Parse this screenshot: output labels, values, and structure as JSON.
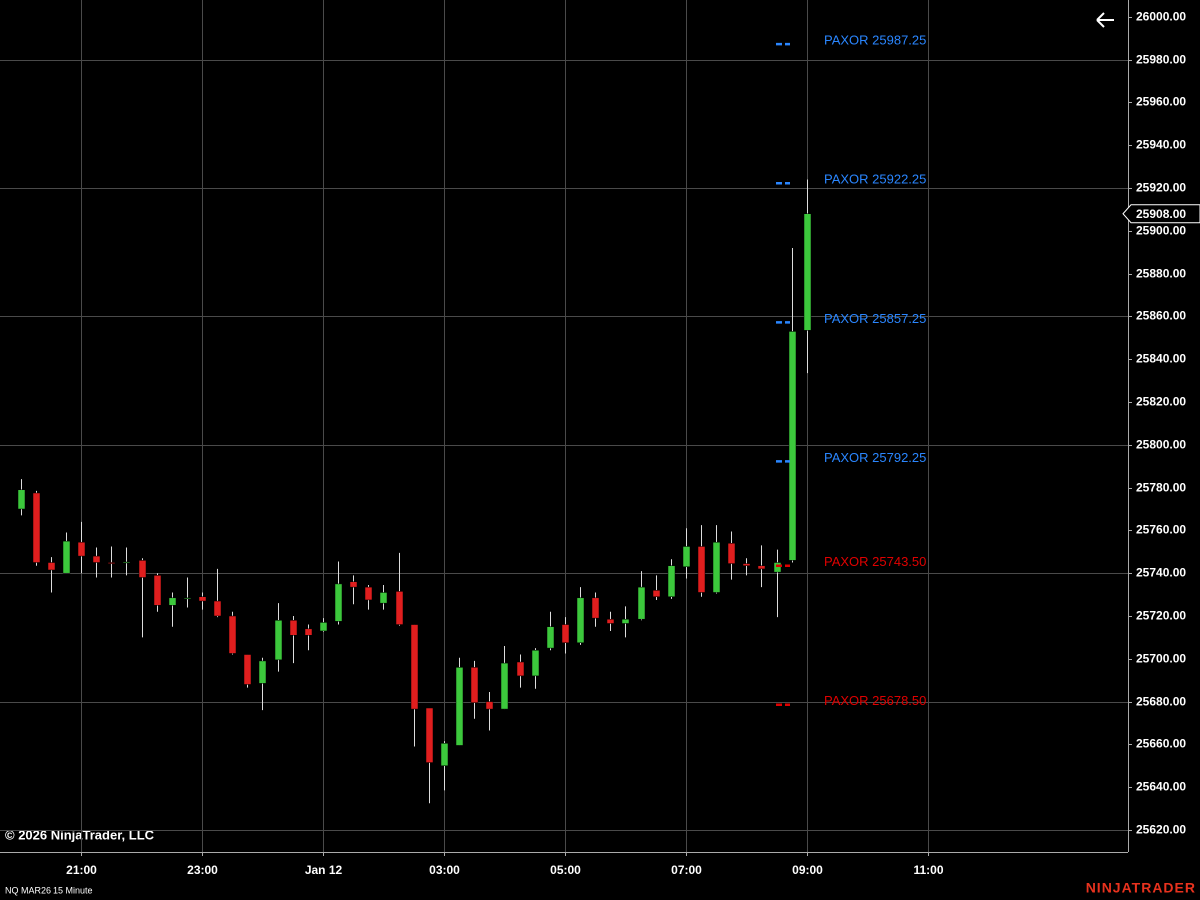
{
  "chart_data": {
    "type": "candlestick",
    "x": [
      20,
      20.25,
      20.5,
      20.75,
      21,
      21.25,
      21.5,
      21.75,
      22,
      22.25,
      22.5,
      22.75,
      23,
      23.25,
      23.5,
      23.75,
      24,
      24.25,
      24.5,
      24.75,
      25,
      25.25,
      25.5,
      25.75,
      26,
      26.25,
      26.5,
      26.75,
      27,
      27.25,
      27.5,
      27.75,
      28,
      28.25,
      28.5,
      28.75,
      29,
      29.25,
      29.5,
      29.75,
      30,
      30.25,
      30.5,
      30.75,
      31,
      31.25,
      31.5,
      31.75,
      32,
      32.25,
      32.5,
      32.75,
      33
    ],
    "open": [
      25770,
      25777.5,
      25745,
      25740,
      25754.5,
      25748,
      25745,
      25745,
      25746,
      25739,
      25725,
      25728.25,
      25729,
      25727,
      25720,
      25702,
      25688.5,
      25699.5,
      25718,
      25714,
      25713,
      25717.5,
      25736,
      25733.5,
      25726,
      25731.5,
      25716,
      25677,
      25650,
      25659.5,
      25696,
      25680,
      25676.5,
      25698.5,
      25692,
      25705,
      25716,
      25707.5,
      25728.5,
      25718.5,
      25716.5,
      25718.5,
      25732,
      25729,
      25743,
      25752.5,
      25731,
      25754,
      25744.5,
      25743.5,
      25740.5,
      25746,
      25853.5
    ],
    "high": [
      25784,
      25778.5,
      25747.5,
      25759,
      25764,
      25752,
      25752.5,
      25752,
      25747,
      25740,
      25731,
      25738,
      25731,
      25742,
      25722,
      25702,
      25700.5,
      25726,
      25720,
      25716,
      25719,
      25745.5,
      25739,
      25734.5,
      25734.5,
      25749.5,
      25716,
      25677,
      25661.5,
      25700.5,
      25699,
      25684.5,
      25706,
      25702,
      25705,
      25722,
      25719.5,
      25733.5,
      25731,
      25722,
      25724.5,
      25741,
      25739,
      25746.5,
      25761,
      25762.5,
      25762.5,
      25759.5,
      25747,
      25753,
      25751,
      25892,
      25924
    ],
    "low": [
      25767,
      25743.5,
      25731,
      25740,
      25740,
      25738,
      25738,
      25739,
      25710,
      25722,
      25715,
      25724,
      25723,
      25719.5,
      25702,
      25686.5,
      25676,
      25694,
      25698,
      25704,
      25712.5,
      25716,
      25725.5,
      25723,
      25723,
      25715.5,
      25659,
      25632.5,
      25638.5,
      25659.5,
      25672,
      25666.5,
      25676.5,
      25686.5,
      25686,
      25704,
      25702.5,
      25706.5,
      25715,
      25713,
      25710,
      25718,
      25727.5,
      25728,
      25737.5,
      25729,
      25730.5,
      25737,
      25739,
      25733.5,
      25719.5,
      25745,
      25833.5
    ],
    "close": [
      25779,
      25745,
      25741.5,
      25755,
      25748,
      25745,
      25744.5,
      25745.25,
      25738,
      25725,
      25728.5,
      25728.5,
      25727,
      25720,
      25702.5,
      25688,
      25699,
      25718,
      25711,
      25711,
      25717,
      25735,
      25733.5,
      25727.5,
      25731,
      25716,
      25676.5,
      25651.5,
      25660.5,
      25696,
      25679.5,
      25676.5,
      25698,
      25692,
      25704,
      25715,
      25707.5,
      25728.5,
      25719,
      25716.5,
      25718.5,
      25733.5,
      25729,
      25743.5,
      25752.5,
      25731,
      25754.5,
      25744.5,
      25743.5,
      25742,
      25745,
      25853,
      25908
    ],
    "up_color": "#3cc83c",
    "down_color": "#e01e1e",
    "xlim": [
      19.66,
      38.31
    ],
    "xticks": [
      {
        "value": 21,
        "label": "21:00"
      },
      {
        "value": 23,
        "label": "23:00"
      },
      {
        "value": 25,
        "label": "Jan 12"
      },
      {
        "value": 27,
        "label": "03:00"
      },
      {
        "value": 29,
        "label": "05:00"
      },
      {
        "value": 31,
        "label": "07:00"
      },
      {
        "value": 33,
        "label": "09:00"
      },
      {
        "value": 35,
        "label": "11:00"
      }
    ],
    "ylim": [
      25609.7,
      26007.9
    ],
    "yticks": [
      {
        "value": 25620,
        "label": "25620.00"
      },
      {
        "value": 25640,
        "label": "25640.00"
      },
      {
        "value": 25660,
        "label": "25660.00"
      },
      {
        "value": 25680,
        "label": "25680.00"
      },
      {
        "value": 25700,
        "label": "25700.00"
      },
      {
        "value": 25720,
        "label": "25720.00"
      },
      {
        "value": 25740,
        "label": "25740.00"
      },
      {
        "value": 25760,
        "label": "25760.00"
      },
      {
        "value": 25780,
        "label": "25780.00"
      },
      {
        "value": 25800,
        "label": "25800.00"
      },
      {
        "value": 25820,
        "label": "25820.00"
      },
      {
        "value": 25840,
        "label": "25840.00"
      },
      {
        "value": 25860,
        "label": "25860.00"
      },
      {
        "value": 25880,
        "label": "25880.00"
      },
      {
        "value": 25900,
        "label": "25900.00"
      },
      {
        "value": 25920,
        "label": "25920.00"
      },
      {
        "value": 25940,
        "label": "25940.00"
      },
      {
        "value": 25960,
        "label": "25960.00"
      },
      {
        "value": 25980,
        "label": "25980.00"
      },
      {
        "value": 26000,
        "label": "26000.00"
      }
    ],
    "ygrid": [
      25620,
      25680,
      25740,
      25800,
      25860,
      25920,
      25980
    ],
    "last_price": {
      "value": 25908,
      "label": "25908.00"
    },
    "levels": [
      {
        "label": "PAXOR 25987.25",
        "value": 25987.25,
        "color": "#2a86ff"
      },
      {
        "label": "PAXOR 25922.25",
        "value": 25922.25,
        "color": "#2a86ff"
      },
      {
        "label": "PAXOR 25857.25",
        "value": 25857.25,
        "color": "#2a86ff"
      },
      {
        "label": "PAXOR 25792.25",
        "value": 25792.25,
        "color": "#2a86ff"
      },
      {
        "label": "PAXOR 25743.50",
        "value": 25743.5,
        "color": "#e00000"
      },
      {
        "label": "PAXOR 25678.50",
        "value": 25678.5,
        "color": "#e00000"
      }
    ],
    "copyright": "© 2026 NinjaTrader, LLC",
    "instrument": "NQ MAR26",
    "period": "15 Minute",
    "brand": "NINJATRADER"
  }
}
